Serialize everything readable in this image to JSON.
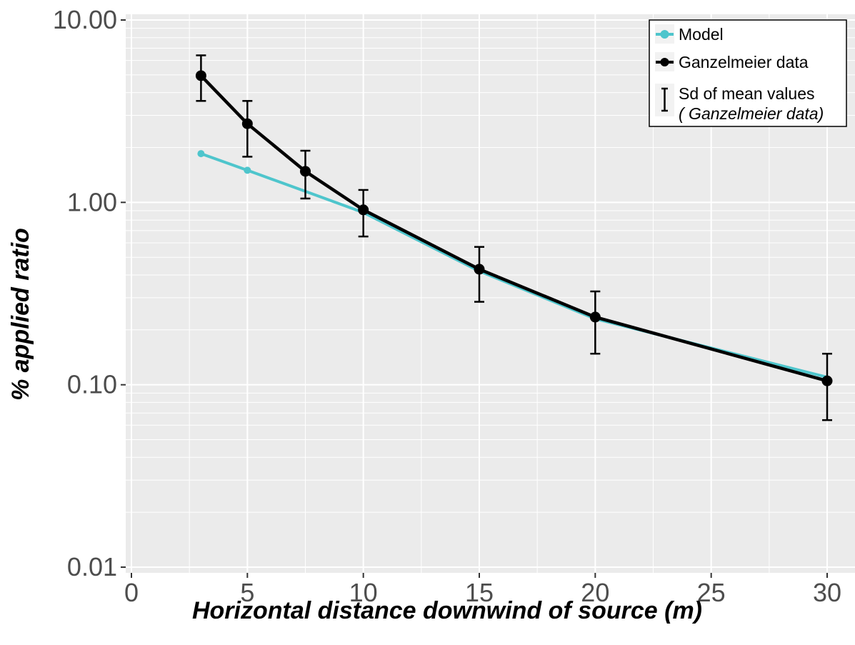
{
  "chart_data": {
    "type": "line",
    "xlabel": "Horizontal distance downwind of source (m)",
    "ylabel": "% applied ratio",
    "xlim": [
      0,
      31
    ],
    "ylim": [
      0.01,
      10
    ],
    "yscale": "log",
    "grid": true,
    "legend_position": "top-right",
    "x_ticks": [
      0,
      5,
      10,
      15,
      20,
      25,
      30
    ],
    "x_tick_labels": [
      "0",
      "5",
      "10",
      "15",
      "20",
      "25",
      "30"
    ],
    "y_ticks": [
      0.01,
      0.1,
      1,
      10
    ],
    "y_tick_labels": [
      "0.01",
      "0.10",
      "1.00",
      "10.00"
    ],
    "series": [
      {
        "name": "Model",
        "color": "#4ec5cc",
        "x": [
          3,
          5,
          7.5,
          10,
          15,
          20,
          30
        ],
        "y": [
          1.85,
          1.5,
          1.15,
          0.88,
          0.42,
          0.23,
          0.11
        ]
      },
      {
        "name": "Ganzelmeier data",
        "color": "#000000",
        "x": [
          3,
          5,
          7.5,
          10,
          15,
          20,
          30
        ],
        "y": [
          4.95,
          2.7,
          1.48,
          0.91,
          0.43,
          0.235,
          0.105
        ],
        "error_low": [
          3.6,
          1.78,
          1.05,
          0.65,
          0.285,
          0.148,
          0.064
        ],
        "error_high": [
          6.4,
          3.6,
          1.92,
          1.17,
          0.57,
          0.325,
          0.148
        ]
      }
    ],
    "legend": {
      "model_label": "Model",
      "data_label": "Ganzelmeier data",
      "sd_label_line1": "Sd of mean values",
      "sd_label_line2": "( Ganzelmeier data)"
    }
  }
}
